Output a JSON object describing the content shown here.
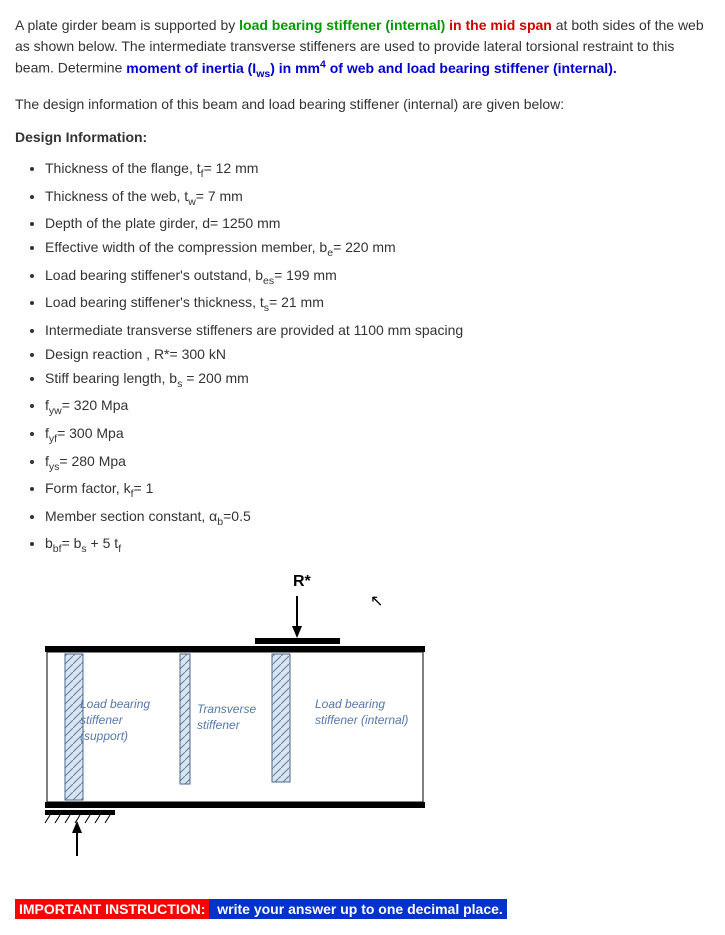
{
  "intro": {
    "part1": "A plate girder beam is supported by ",
    "green1": "load bearing stiffener (internal)",
    "red1": " in the mid span",
    "part2": " at both sides of the web as shown below. The intermediate transverse stiffeners are used to provide lateral torsional restraint to this beam. Determine ",
    "blue1": "moment of inertia (I",
    "blue1_sub": "ws",
    "blue1_end": ") in mm",
    "blue1_sup": "4",
    "blue1_tail": " of web and load bearing stiffener (internal)."
  },
  "subinfo": "The design information of this beam and load bearing stiffener (internal) are given below:",
  "section_title": "Design Information:",
  "items": [
    {
      "pre": "Thickness of the flange, t",
      "sub": "f",
      "post": "= 12 mm"
    },
    {
      "pre": "Thickness of the web, t",
      "sub": "w",
      "post": "= 7 mm"
    },
    {
      "pre": "Depth of the plate girder, d= 1250 mm",
      "sub": "",
      "post": ""
    },
    {
      "pre": "Effective width of the compression member, b",
      "sub": "e",
      "post": "= 220 mm"
    },
    {
      "pre": "Load bearing stiffener's outstand, b",
      "sub": "es",
      "post": "= 199 mm"
    },
    {
      "pre": "Load bearing stiffener's thickness, t",
      "sub": "s",
      "post": "= 21 mm"
    },
    {
      "pre": "Intermediate transverse stiffeners are provided at 1100 mm spacing",
      "sub": "",
      "post": ""
    },
    {
      "pre": "Design reaction , R*= 300 kN",
      "sub": "",
      "post": ""
    },
    {
      "pre": "Stiff bearing length, b",
      "sub": "s",
      "post": " = 200 mm"
    },
    {
      "pre": "f",
      "sub": "yw",
      "post": "= 320 Mpa"
    },
    {
      "pre": "f",
      "sub": "yf",
      "post": "= 300 Mpa"
    },
    {
      "pre": "f",
      "sub": "ys",
      "post": "= 280 Mpa"
    },
    {
      "pre": "Form factor, k",
      "sub": "f",
      "post": "= 1"
    },
    {
      "pre": "Member section constant, α",
      "sub": "b",
      "post": "=0.5"
    },
    {
      "pre": "b",
      "sub": "bf",
      "post": "= b",
      "sub2": "s",
      "post2": " + 5 t",
      "sub3": "f",
      "post3": ""
    }
  ],
  "diagram": {
    "r_label": "R*",
    "label_support": "Load bearing stiffener (support)",
    "label_transverse": "Transverse stiffener",
    "label_internal": "Load bearing stiffener (internal)",
    "colors": {
      "outline": "#000000",
      "stiffener_fill": "#c8d8e8",
      "stiffener_hatch": "#6080a0",
      "label_text": "#3b5998",
      "label_text_italic": "#5577aa",
      "flange": "#000000"
    }
  },
  "instruction": {
    "red": "IMPORTANT INSTRUCTION:",
    "blue": " write your answer up to one decimal place."
  }
}
